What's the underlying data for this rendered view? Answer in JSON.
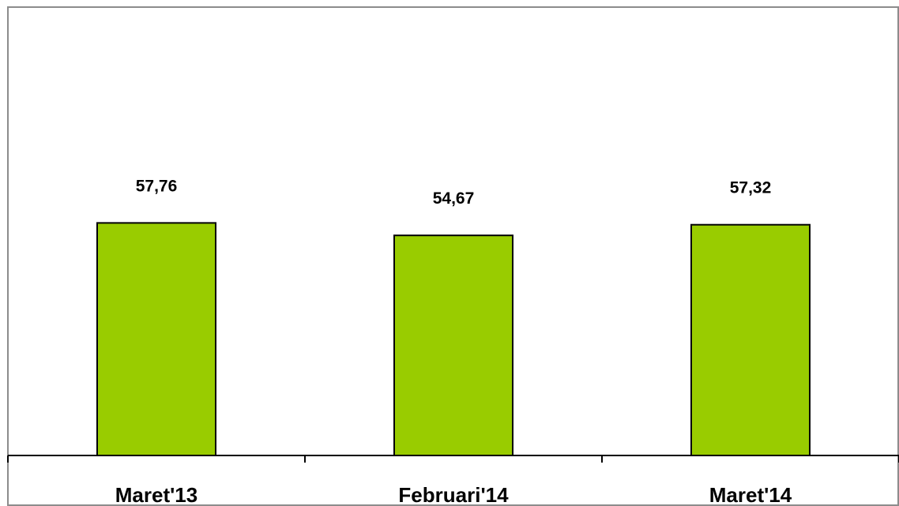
{
  "chart_data": {
    "type": "bar",
    "categories": [
      "Maret'13",
      "Februari'14",
      "Maret'14"
    ],
    "values": [
      57.76,
      54.67,
      57.32
    ],
    "value_labels": [
      "57,76",
      "54,67",
      "57,32"
    ],
    "title": "",
    "xlabel": "",
    "ylabel": "",
    "ylim": [
      0,
      70
    ],
    "grid": false,
    "legend": "none",
    "colors": {
      "bar_fill": "#99cc00",
      "bar_stroke": "#000000",
      "frame": "#8c8c8c",
      "axis": "#000000"
    }
  }
}
